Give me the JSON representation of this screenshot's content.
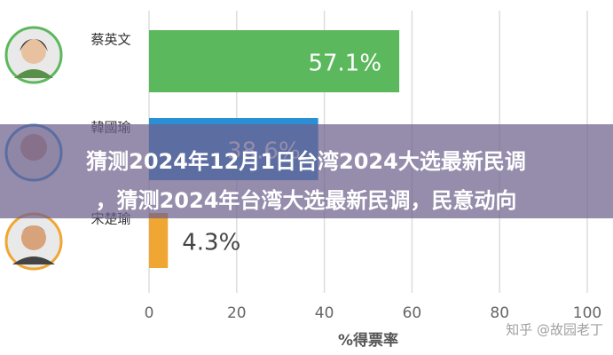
{
  "chart_data": {
    "type": "hbar",
    "categories": [
      "蔡英文",
      "韓國瑜",
      "宋楚瑜"
    ],
    "values": [
      57.1,
      38.6,
      4.3
    ],
    "value_labels": [
      "57.1%",
      "38.6%",
      "4.3%"
    ],
    "colors": [
      "#5cb85c",
      "#2b8fd6",
      "#f0a632"
    ],
    "xlim": [
      0,
      100
    ],
    "xticks": [
      0,
      20,
      40,
      60,
      80,
      100
    ],
    "x_label": "%得票率",
    "grid": true
  },
  "overlay": {
    "lines": [
      "猜测2024年12月1日台湾2024大选最新民调",
      "，猜测2024年台湾大选最新民调，民意动向"
    ]
  },
  "watermark": "知乎 @故园老丁"
}
